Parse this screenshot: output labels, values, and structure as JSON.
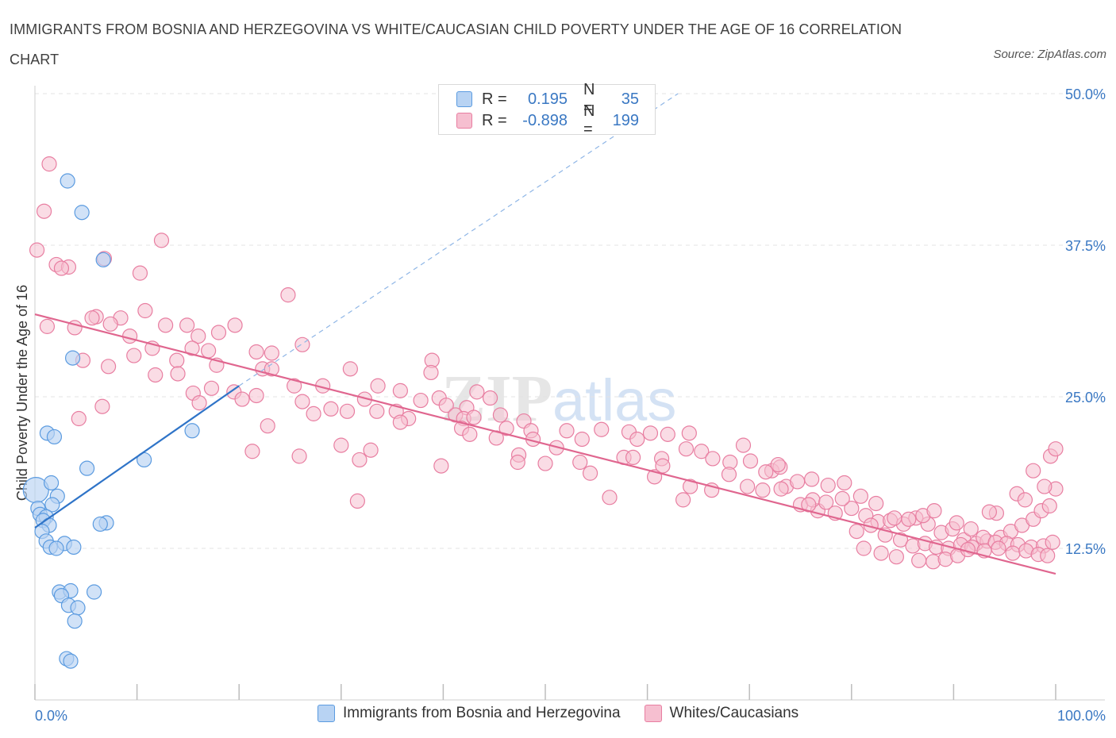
{
  "title": "IMMIGRANTS FROM BOSNIA AND HERZEGOVINA VS WHITE/CAUCASIAN CHILD POVERTY UNDER THE AGE OF 16 CORRELATION CHART",
  "source": "Source: ZipAtlas.com",
  "watermark": "ZIPatlas",
  "legend": {
    "rows": [
      {
        "r_label": "R =",
        "r_value": "0.195",
        "n_label": "N =",
        "n_value": "35",
        "color": "#b8d3f3"
      },
      {
        "r_label": "R =",
        "r_value": "-0.898",
        "n_label": "N =",
        "n_value": "199",
        "color": "#f6bfd0"
      }
    ]
  },
  "bottom_legend": [
    {
      "label": "Immigrants from Bosnia and Herzegovina",
      "color": "#b8d3f3"
    },
    {
      "label": "Whites/Caucasians",
      "color": "#f6bfd0"
    }
  ],
  "chart_data": {
    "type": "scatter",
    "ylabel": "Child Poverty Under the Age of 16",
    "xlabel": "",
    "xlim": [
      0,
      100
    ],
    "ylim": [
      0,
      50
    ],
    "x_tick_labels": [
      "0.0%",
      "100.0%"
    ],
    "y_tick_labels": [
      "12.5%",
      "25.0%",
      "37.5%",
      "50.0%"
    ],
    "y_ticks": [
      12.5,
      25.0,
      37.5,
      50.0
    ],
    "grid": true,
    "colors": {
      "blue": "#5b9be0",
      "blue_fill": "#b8d3f3",
      "pink": "#e87ea1",
      "pink_fill": "#f6bfd0",
      "blue_line": "#2f74c8",
      "pink_line": "#e0668f"
    },
    "series": [
      {
        "name": "Immigrants from Bosnia and Herzegovina",
        "color": "#b8d3f3",
        "points": [
          [
            3.2,
            42.8
          ],
          [
            4.6,
            40.2
          ],
          [
            6.7,
            36.3
          ],
          [
            3.7,
            28.2
          ],
          [
            1.2,
            22.0
          ],
          [
            1.9,
            21.7
          ],
          [
            15.4,
            22.2
          ],
          [
            10.7,
            19.8
          ],
          [
            5.1,
            19.1
          ],
          [
            0.1,
            17.3
          ],
          [
            1.6,
            17.9
          ],
          [
            2.2,
            16.8
          ],
          [
            1.7,
            16.1
          ],
          [
            0.3,
            15.8
          ],
          [
            0.5,
            15.3
          ],
          [
            1.1,
            15.1
          ],
          [
            0.8,
            14.8
          ],
          [
            7.0,
            14.6
          ],
          [
            6.4,
            14.5
          ],
          [
            1.4,
            14.4
          ],
          [
            0.7,
            13.9
          ],
          [
            1.1,
            13.1
          ],
          [
            2.9,
            12.9
          ],
          [
            1.5,
            12.6
          ],
          [
            2.1,
            12.5
          ],
          [
            3.8,
            12.6
          ],
          [
            2.4,
            8.9
          ],
          [
            3.5,
            9.0
          ],
          [
            2.6,
            8.6
          ],
          [
            5.8,
            8.9
          ],
          [
            3.3,
            7.8
          ],
          [
            4.2,
            7.6
          ],
          [
            3.9,
            6.5
          ],
          [
            3.1,
            3.4
          ],
          [
            3.5,
            3.2
          ]
        ],
        "trend": [
          [
            0,
            14.2
          ],
          [
            20,
            25.9
          ]
        ],
        "trend_dashed": [
          [
            20,
            25.9
          ],
          [
            63,
            50
          ]
        ]
      },
      {
        "name": "Whites/Caucasians",
        "color": "#f6bfd0",
        "points": [
          [
            1.4,
            44.2
          ],
          [
            0.9,
            40.3
          ],
          [
            0.2,
            37.1
          ],
          [
            12.4,
            37.9
          ],
          [
            2.1,
            35.9
          ],
          [
            3.3,
            35.7
          ],
          [
            2.6,
            35.6
          ],
          [
            10.3,
            35.2
          ],
          [
            6.8,
            36.4
          ],
          [
            24.8,
            33.4
          ],
          [
            10.8,
            32.1
          ],
          [
            6.0,
            31.6
          ],
          [
            5.6,
            31.5
          ],
          [
            8.4,
            31.5
          ],
          [
            7.4,
            31.0
          ],
          [
            1.2,
            30.8
          ],
          [
            3.9,
            30.7
          ],
          [
            12.8,
            30.9
          ],
          [
            14.9,
            30.9
          ],
          [
            19.6,
            30.9
          ],
          [
            9.3,
            30.0
          ],
          [
            18.0,
            30.3
          ],
          [
            16.0,
            30.0
          ],
          [
            15.4,
            29.0
          ],
          [
            11.5,
            29.0
          ],
          [
            17.0,
            28.8
          ],
          [
            21.7,
            28.7
          ],
          [
            26.2,
            29.3
          ],
          [
            23.2,
            28.6
          ],
          [
            9.7,
            28.4
          ],
          [
            4.7,
            28.0
          ],
          [
            13.9,
            28.0
          ],
          [
            17.8,
            27.6
          ],
          [
            38.9,
            28.0
          ],
          [
            7.2,
            27.5
          ],
          [
            22.3,
            27.3
          ],
          [
            23.2,
            27.3
          ],
          [
            30.9,
            27.3
          ],
          [
            38.8,
            27.0
          ],
          [
            14.0,
            26.9
          ],
          [
            11.8,
            26.8
          ],
          [
            15.5,
            25.3
          ],
          [
            17.3,
            25.7
          ],
          [
            19.5,
            25.4
          ],
          [
            25.4,
            25.9
          ],
          [
            28.2,
            25.9
          ],
          [
            33.6,
            25.9
          ],
          [
            35.8,
            25.5
          ],
          [
            43.3,
            25.4
          ],
          [
            21.7,
            25.1
          ],
          [
            20.3,
            24.8
          ],
          [
            32.3,
            24.8
          ],
          [
            37.8,
            24.7
          ],
          [
            39.6,
            24.9
          ],
          [
            40.3,
            24.3
          ],
          [
            42.3,
            24.1
          ],
          [
            44.6,
            24.9
          ],
          [
            6.6,
            24.2
          ],
          [
            16.1,
            24.5
          ],
          [
            26.2,
            24.6
          ],
          [
            27.3,
            23.6
          ],
          [
            29.0,
            24.0
          ],
          [
            30.6,
            23.8
          ],
          [
            33.5,
            23.8
          ],
          [
            35.4,
            23.8
          ],
          [
            41.2,
            23.5
          ],
          [
            45.6,
            23.5
          ],
          [
            36.6,
            23.2
          ],
          [
            42.0,
            23.2
          ],
          [
            43.0,
            23.3
          ],
          [
            47.9,
            23.0
          ],
          [
            4.3,
            23.2
          ],
          [
            22.8,
            22.6
          ],
          [
            35.8,
            22.9
          ],
          [
            41.8,
            22.4
          ],
          [
            46.2,
            22.4
          ],
          [
            48.6,
            22.2
          ],
          [
            52.1,
            22.2
          ],
          [
            55.5,
            22.3
          ],
          [
            58.2,
            22.1
          ],
          [
            60.3,
            22.0
          ],
          [
            62.0,
            21.9
          ],
          [
            64.1,
            22.0
          ],
          [
            69.4,
            21.0
          ],
          [
            42.6,
            21.9
          ],
          [
            45.2,
            21.6
          ],
          [
            48.8,
            21.5
          ],
          [
            53.6,
            21.5
          ],
          [
            59.0,
            21.5
          ],
          [
            63.8,
            20.7
          ],
          [
            65.3,
            20.5
          ],
          [
            57.7,
            20.0
          ],
          [
            61.4,
            19.9
          ],
          [
            66.4,
            19.9
          ],
          [
            68.1,
            19.6
          ],
          [
            70.1,
            19.7
          ],
          [
            72.2,
            18.9
          ],
          [
            73.0,
            19.2
          ],
          [
            58.6,
            20.0
          ],
          [
            51.1,
            20.8
          ],
          [
            60.7,
            18.4
          ],
          [
            64.2,
            17.6
          ],
          [
            69.8,
            17.6
          ],
          [
            71.3,
            17.3
          ],
          [
            73.6,
            17.6
          ],
          [
            74.7,
            18.0
          ],
          [
            76.1,
            18.2
          ],
          [
            77.7,
            17.7
          ],
          [
            79.3,
            17.9
          ],
          [
            61.5,
            19.3
          ],
          [
            73.1,
            17.4
          ],
          [
            75.0,
            16.1
          ],
          [
            76.7,
            15.6
          ],
          [
            78.4,
            15.4
          ],
          [
            80.0,
            15.8
          ],
          [
            81.4,
            15.2
          ],
          [
            82.6,
            14.7
          ],
          [
            83.8,
            14.8
          ],
          [
            85.1,
            14.5
          ],
          [
            86.3,
            15.0
          ],
          [
            87.5,
            14.5
          ],
          [
            88.8,
            13.8
          ],
          [
            89.9,
            14.1
          ],
          [
            91.0,
            13.2
          ],
          [
            92.2,
            12.9
          ],
          [
            93.3,
            13.1
          ],
          [
            94.6,
            13.4
          ],
          [
            95.6,
            13.9
          ],
          [
            96.7,
            14.4
          ],
          [
            97.8,
            14.9
          ],
          [
            98.6,
            15.6
          ],
          [
            99.4,
            16.0
          ],
          [
            100.0,
            17.4
          ],
          [
            80.9,
            16.8
          ],
          [
            82.4,
            16.2
          ],
          [
            84.2,
            15.0
          ],
          [
            85.6,
            14.9
          ],
          [
            87.0,
            15.2
          ],
          [
            88.1,
            15.6
          ],
          [
            90.3,
            14.6
          ],
          [
            91.7,
            14.1
          ],
          [
            92.9,
            13.4
          ],
          [
            94.1,
            13.0
          ],
          [
            95.2,
            12.9
          ],
          [
            96.3,
            12.8
          ],
          [
            97.6,
            12.6
          ],
          [
            98.8,
            12.7
          ],
          [
            99.7,
            13.0
          ],
          [
            80.5,
            13.9
          ],
          [
            81.9,
            14.4
          ],
          [
            83.3,
            13.6
          ],
          [
            84.8,
            13.2
          ],
          [
            86.0,
            12.7
          ],
          [
            87.2,
            12.9
          ],
          [
            88.3,
            12.6
          ],
          [
            89.5,
            12.5
          ],
          [
            90.7,
            12.8
          ],
          [
            91.8,
            12.6
          ],
          [
            93.0,
            12.3
          ],
          [
            94.4,
            12.5
          ],
          [
            95.8,
            12.1
          ],
          [
            97.1,
            12.3
          ],
          [
            98.3,
            12.0
          ],
          [
            99.2,
            11.9
          ],
          [
            81.2,
            12.5
          ],
          [
            82.9,
            12.1
          ],
          [
            84.4,
            11.8
          ],
          [
            86.6,
            11.5
          ],
          [
            88.0,
            11.4
          ],
          [
            89.2,
            11.6
          ],
          [
            90.4,
            11.9
          ],
          [
            91.4,
            12.4
          ],
          [
            76.2,
            16.5
          ],
          [
            77.5,
            16.3
          ],
          [
            79.1,
            16.6
          ],
          [
            68.0,
            18.6
          ],
          [
            71.6,
            18.8
          ],
          [
            66.3,
            17.3
          ],
          [
            72.8,
            19.4
          ],
          [
            75.8,
            16.1
          ],
          [
            97.8,
            18.9
          ],
          [
            99.5,
            20.1
          ],
          [
            98.9,
            17.6
          ],
          [
            96.2,
            17.0
          ],
          [
            94.2,
            15.4
          ],
          [
            93.5,
            15.5
          ],
          [
            97.0,
            16.5
          ],
          [
            100.0,
            20.7
          ],
          [
            30.0,
            21.0
          ],
          [
            31.8,
            19.8
          ],
          [
            21.3,
            20.5
          ],
          [
            25.9,
            20.1
          ],
          [
            32.9,
            20.6
          ],
          [
            47.4,
            20.2
          ],
          [
            50.0,
            19.5
          ],
          [
            53.4,
            19.6
          ],
          [
            54.4,
            18.7
          ],
          [
            56.3,
            16.7
          ],
          [
            63.5,
            16.5
          ],
          [
            39.8,
            19.3
          ],
          [
            47.3,
            19.6
          ],
          [
            31.6,
            16.4
          ]
        ],
        "trend": [
          [
            0,
            31.8
          ],
          [
            100,
            10.4
          ]
        ]
      }
    ]
  }
}
